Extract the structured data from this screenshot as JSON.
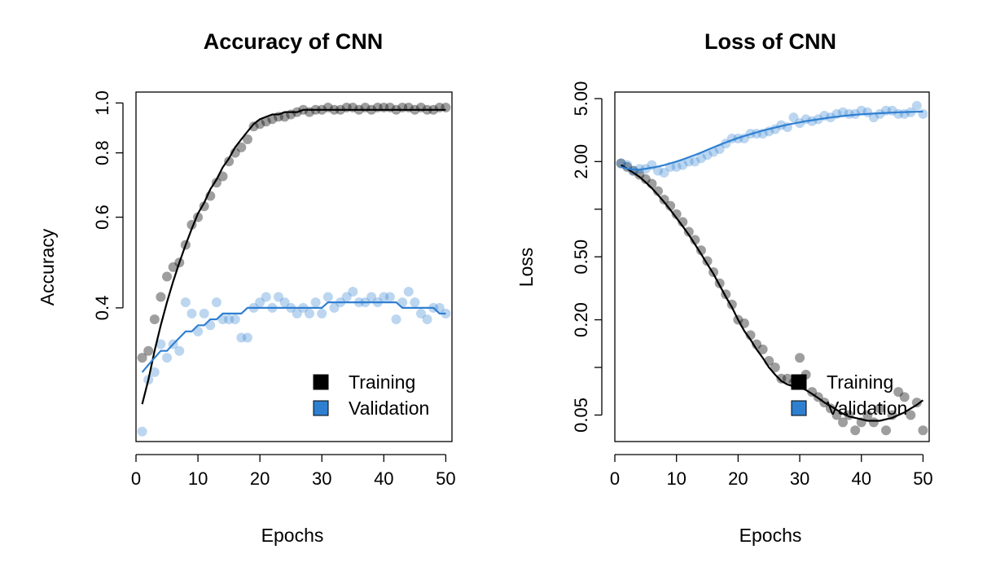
{
  "chart_data": [
    {
      "type": "scatter",
      "title": "Accuracy of CNN",
      "xlabel": "Epochs",
      "ylabel": "Accuracy",
      "xlim": [
        0,
        51
      ],
      "ylim": [
        0.22,
        1.05
      ],
      "y_scale": "log",
      "x_ticks": [
        0,
        10,
        20,
        30,
        40,
        50
      ],
      "y_ticks": [
        0.4,
        0.6,
        0.8,
        1.0
      ],
      "y_tick_labels": [
        "0.4",
        "0.6",
        "0.8",
        "1.0"
      ],
      "legend": {
        "position": "bottom-right",
        "entries": [
          "Training",
          "Validation"
        ]
      },
      "series": [
        {
          "name": "Training",
          "color": "#000000",
          "x": [
            1,
            2,
            3,
            4,
            5,
            6,
            7,
            8,
            9,
            10,
            11,
            12,
            13,
            14,
            15,
            16,
            17,
            18,
            19,
            20,
            21,
            22,
            23,
            24,
            25,
            26,
            27,
            28,
            29,
            30,
            31,
            32,
            33,
            34,
            35,
            36,
            37,
            38,
            39,
            40,
            41,
            42,
            43,
            44,
            45,
            46,
            47,
            48,
            49,
            50
          ],
          "y": [
            0.32,
            0.33,
            0.38,
            0.42,
            0.46,
            0.48,
            0.49,
            0.53,
            0.58,
            0.6,
            0.63,
            0.66,
            0.7,
            0.72,
            0.77,
            0.8,
            0.82,
            0.85,
            0.9,
            0.91,
            0.92,
            0.93,
            0.94,
            0.94,
            0.95,
            0.96,
            0.97,
            0.96,
            0.97,
            0.97,
            0.98,
            0.97,
            0.97,
            0.98,
            0.98,
            0.97,
            0.98,
            0.97,
            0.98,
            0.98,
            0.98,
            0.97,
            0.98,
            0.98,
            0.97,
            0.98,
            0.97,
            0.97,
            0.98,
            0.98
          ],
          "fit": [
            0.26,
            0.29,
            0.33,
            0.37,
            0.41,
            0.45,
            0.49,
            0.53,
            0.57,
            0.61,
            0.64,
            0.68,
            0.71,
            0.75,
            0.78,
            0.82,
            0.85,
            0.88,
            0.91,
            0.93,
            0.94,
            0.95,
            0.95,
            0.96,
            0.96,
            0.96,
            0.97,
            0.97,
            0.97,
            0.97,
            0.97,
            0.97,
            0.97,
            0.97,
            0.97,
            0.97,
            0.97,
            0.97,
            0.97,
            0.97,
            0.97,
            0.97,
            0.97,
            0.97,
            0.97,
            0.97,
            0.97,
            0.97,
            0.97,
            0.97
          ]
        },
        {
          "name": "Validation",
          "color": "#2f7fd1",
          "x": [
            1,
            2,
            3,
            4,
            5,
            6,
            7,
            8,
            9,
            10,
            11,
            12,
            13,
            14,
            15,
            16,
            17,
            18,
            19,
            20,
            21,
            22,
            23,
            24,
            25,
            26,
            27,
            28,
            29,
            30,
            31,
            32,
            33,
            34,
            35,
            36,
            37,
            38,
            39,
            40,
            41,
            42,
            43,
            44,
            45,
            46,
            47,
            48,
            49,
            50
          ],
          "y": [
            0.23,
            0.29,
            0.3,
            0.34,
            0.32,
            0.34,
            0.33,
            0.41,
            0.39,
            0.36,
            0.39,
            0.37,
            0.41,
            0.38,
            0.38,
            0.38,
            0.35,
            0.35,
            0.4,
            0.41,
            0.42,
            0.4,
            0.42,
            0.41,
            0.4,
            0.39,
            0.4,
            0.39,
            0.41,
            0.39,
            0.42,
            0.4,
            0.41,
            0.42,
            0.43,
            0.41,
            0.41,
            0.42,
            0.41,
            0.42,
            0.42,
            0.38,
            0.41,
            0.43,
            0.41,
            0.39,
            0.38,
            0.4,
            0.4,
            0.39
          ],
          "fit": [
            0.3,
            0.31,
            0.32,
            0.33,
            0.33,
            0.34,
            0.35,
            0.36,
            0.36,
            0.37,
            0.37,
            0.38,
            0.38,
            0.39,
            0.39,
            0.39,
            0.39,
            0.4,
            0.4,
            0.4,
            0.4,
            0.4,
            0.4,
            0.4,
            0.4,
            0.4,
            0.4,
            0.4,
            0.4,
            0.4,
            0.41,
            0.41,
            0.41,
            0.41,
            0.41,
            0.41,
            0.41,
            0.41,
            0.41,
            0.41,
            0.41,
            0.41,
            0.4,
            0.4,
            0.4,
            0.4,
            0.4,
            0.4,
            0.39,
            0.39
          ]
        }
      ]
    },
    {
      "type": "scatter",
      "title": "Loss of CNN",
      "xlabel": "Epochs",
      "ylabel": "Loss",
      "xlim": [
        0,
        51
      ],
      "ylim": [
        0.034,
        5.5
      ],
      "y_scale": "log",
      "x_ticks": [
        0,
        10,
        20,
        30,
        40,
        50
      ],
      "y_ticks": [
        0.05,
        0.1,
        0.2,
        0.5,
        1.0,
        2.0,
        5.0
      ],
      "y_tick_labels": [
        "0.05",
        "",
        "0.20",
        "0.50",
        "",
        "2.00",
        "5.00"
      ],
      "legend": {
        "position": "bottom-right",
        "entries": [
          "Training",
          "Validation"
        ]
      },
      "series": [
        {
          "name": "Training",
          "color": "#000000",
          "x": [
            1,
            2,
            3,
            4,
            5,
            6,
            7,
            8,
            9,
            10,
            11,
            12,
            13,
            14,
            15,
            16,
            17,
            18,
            19,
            20,
            21,
            22,
            23,
            24,
            25,
            26,
            27,
            28,
            29,
            30,
            31,
            32,
            33,
            34,
            35,
            36,
            37,
            38,
            39,
            40,
            41,
            42,
            43,
            44,
            45,
            46,
            47,
            48,
            49,
            50
          ],
          "y": [
            1.95,
            1.85,
            1.75,
            1.65,
            1.55,
            1.45,
            1.3,
            1.15,
            1.05,
            0.93,
            0.83,
            0.72,
            0.64,
            0.55,
            0.47,
            0.4,
            0.34,
            0.29,
            0.25,
            0.2,
            0.19,
            0.16,
            0.14,
            0.13,
            0.11,
            0.1,
            0.085,
            0.085,
            0.08,
            0.115,
            0.09,
            0.07,
            0.065,
            0.06,
            0.055,
            0.05,
            0.045,
            0.05,
            0.04,
            0.045,
            0.05,
            0.045,
            0.055,
            0.04,
            0.05,
            0.07,
            0.065,
            0.05,
            0.06,
            0.04
          ],
          "fit": [
            1.9,
            1.8,
            1.7,
            1.6,
            1.48,
            1.36,
            1.23,
            1.11,
            0.99,
            0.88,
            0.78,
            0.69,
            0.6,
            0.52,
            0.45,
            0.39,
            0.33,
            0.28,
            0.24,
            0.2,
            0.17,
            0.15,
            0.13,
            0.115,
            0.1,
            0.09,
            0.082,
            0.078,
            0.076,
            0.075,
            0.072,
            0.068,
            0.064,
            0.06,
            0.057,
            0.054,
            0.051,
            0.049,
            0.048,
            0.047,
            0.046,
            0.046,
            0.046,
            0.047,
            0.048,
            0.05,
            0.052,
            0.055,
            0.058,
            0.062
          ]
        },
        {
          "name": "Validation",
          "color": "#2f7fd1",
          "x": [
            1,
            2,
            3,
            4,
            5,
            6,
            7,
            8,
            9,
            10,
            11,
            12,
            13,
            14,
            15,
            16,
            17,
            18,
            19,
            20,
            21,
            22,
            23,
            24,
            25,
            26,
            27,
            28,
            29,
            30,
            31,
            32,
            33,
            34,
            35,
            36,
            37,
            38,
            39,
            40,
            41,
            42,
            43,
            44,
            45,
            46,
            47,
            48,
            49,
            50
          ],
          "y": [
            1.95,
            1.9,
            1.75,
            1.8,
            1.8,
            1.9,
            1.75,
            1.7,
            1.85,
            1.85,
            1.9,
            2.0,
            2.0,
            2.1,
            2.2,
            2.3,
            2.4,
            2.6,
            2.8,
            2.8,
            2.8,
            3.0,
            3.0,
            3.0,
            3.1,
            3.2,
            3.4,
            3.3,
            3.8,
            3.5,
            3.7,
            3.6,
            3.7,
            3.9,
            3.8,
            4.0,
            4.1,
            4.0,
            4.0,
            4.2,
            4.1,
            3.8,
            4.0,
            4.2,
            4.2,
            4.0,
            4.0,
            4.1,
            4.5,
            4.0
          ],
          "fit": [
            1.85,
            1.8,
            1.78,
            1.78,
            1.8,
            1.83,
            1.86,
            1.9,
            1.95,
            2.0,
            2.06,
            2.13,
            2.2,
            2.28,
            2.37,
            2.46,
            2.55,
            2.64,
            2.73,
            2.82,
            2.9,
            2.98,
            3.06,
            3.14,
            3.21,
            3.28,
            3.35,
            3.42,
            3.48,
            3.54,
            3.6,
            3.65,
            3.7,
            3.75,
            3.8,
            3.84,
            3.88,
            3.92,
            3.95,
            3.98,
            4.0,
            4.02,
            4.04,
            4.06,
            4.08,
            4.1,
            4.11,
            4.12,
            4.13,
            4.14
          ]
        }
      ]
    }
  ]
}
